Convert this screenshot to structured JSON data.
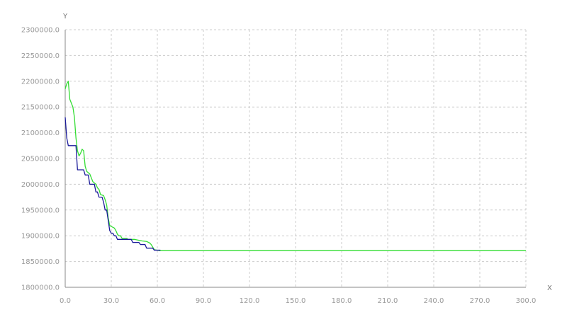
{
  "chart_data": {
    "type": "line",
    "xlabel": "X",
    "ylabel": "Y",
    "xlim": [
      0,
      300
    ],
    "ylim": [
      1800000,
      2300000
    ],
    "x_ticks": [
      "0.0",
      "30.0",
      "60.0",
      "90.0",
      "120.0",
      "150.0",
      "180.0",
      "210.0",
      "240.0",
      "270.0",
      "300.0"
    ],
    "y_ticks": [
      "1800000.0",
      "1850000.0",
      "1900000.0",
      "1950000.0",
      "2000000.0",
      "2050000.0",
      "2100000.0",
      "2150000.0",
      "2200000.0",
      "2250000.0",
      "2300000.0"
    ],
    "grid": true,
    "series": [
      {
        "color": "#1a1a99",
        "x": [
          0,
          1,
          2,
          3,
          7,
          8,
          12,
          13,
          15,
          16,
          19,
          20,
          21,
          22,
          24,
          25,
          26,
          27,
          28,
          29,
          30,
          31,
          32,
          33,
          34,
          36,
          37,
          43,
          44,
          48,
          49,
          52,
          53,
          57,
          58,
          61,
          62
        ],
        "y": [
          2130000,
          2090000,
          2075000,
          2075000,
          2075000,
          2028000,
          2028000,
          2018000,
          2018000,
          2000000,
          2000000,
          1985000,
          1985000,
          1975000,
          1975000,
          1965000,
          1950000,
          1950000,
          1930000,
          1910000,
          1905000,
          1905000,
          1900000,
          1900000,
          1893000,
          1893000,
          1893000,
          1893000,
          1887000,
          1887000,
          1883000,
          1883000,
          1876000,
          1876000,
          1872000,
          1872000,
          1872000
        ]
      },
      {
        "color": "#33dd33",
        "x": [
          0,
          1,
          2,
          3,
          5,
          6,
          7,
          8,
          9,
          10,
          11,
          12,
          13,
          14,
          16,
          18,
          20,
          21,
          22,
          23,
          25,
          26,
          27,
          28,
          29,
          30,
          32,
          33,
          34,
          35,
          36,
          37,
          40,
          41,
          45,
          50,
          53,
          55,
          56,
          58,
          60,
          62,
          300
        ],
        "y": [
          2185000,
          2195000,
          2200000,
          2165000,
          2150000,
          2130000,
          2090000,
          2065000,
          2055000,
          2060000,
          2068000,
          2065000,
          2035000,
          2025000,
          2020000,
          2005000,
          2000000,
          1993000,
          1990000,
          1980000,
          1978000,
          1970000,
          1960000,
          1935000,
          1920000,
          1918000,
          1915000,
          1910000,
          1903000,
          1900000,
          1900000,
          1895000,
          1895000,
          1893000,
          1893000,
          1890000,
          1889000,
          1886000,
          1883000,
          1873000,
          1872000,
          1871000,
          1871000
        ]
      }
    ]
  }
}
